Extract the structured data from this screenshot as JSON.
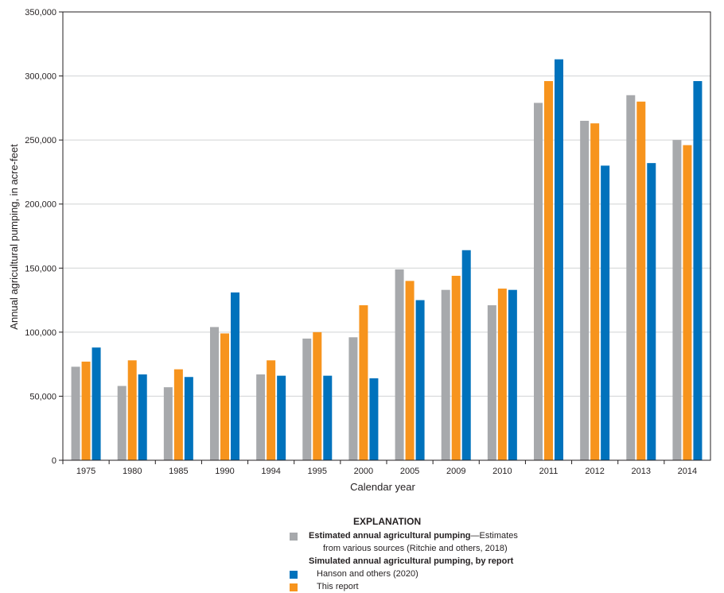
{
  "chart_data": {
    "type": "bar",
    "title": "",
    "xlabel": "Calendar year",
    "ylabel": "Annual agricultural pumping, in acre-feet",
    "ylim": [
      0,
      350000
    ],
    "yticks": [
      0,
      50000,
      100000,
      150000,
      200000,
      250000,
      300000,
      350000
    ],
    "ytick_labels": [
      "0",
      "50,000",
      "100,000",
      "150,000",
      "200,000",
      "250,000",
      "300,000",
      "350,000"
    ],
    "grid": true,
    "categories": [
      "1975",
      "1980",
      "1985",
      "1990",
      "1994",
      "1995",
      "2000",
      "2005",
      "2009",
      "2010",
      "2011",
      "2012",
      "2013",
      "2014"
    ],
    "series": [
      {
        "name": "Estimated annual agricultural pumping",
        "color": "#a7a9ac",
        "values": [
          73000,
          58000,
          57000,
          104000,
          67000,
          95000,
          96000,
          149000,
          133000,
          121000,
          279000,
          265000,
          285000,
          250000
        ]
      },
      {
        "name": "This report",
        "color": "#f7941d",
        "values": [
          77000,
          78000,
          71000,
          99000,
          78000,
          100000,
          121000,
          140000,
          144000,
          134000,
          296000,
          263000,
          280000,
          246000
        ]
      },
      {
        "name": "Hanson and others (2020)",
        "color": "#0072bc",
        "values": [
          88000,
          67000,
          65000,
          131000,
          66000,
          66000,
          64000,
          125000,
          164000,
          133000,
          313000,
          230000,
          232000,
          296000
        ]
      }
    ]
  },
  "legend": {
    "title": "EXPLANATION",
    "estimated_bold": "Estimated annual agricultural pumping",
    "estimated_rest": "—Estimates",
    "estimated_line2": "from various sources (Ritchie and others, 2018)",
    "simulated_heading": "Simulated annual agricultural pumping, by report",
    "hanson": "Hanson and others (2020)",
    "this_report": "This report",
    "color_estimated": "#a7a9ac",
    "color_hanson": "#0072bc",
    "color_this_report": "#f7941d"
  }
}
